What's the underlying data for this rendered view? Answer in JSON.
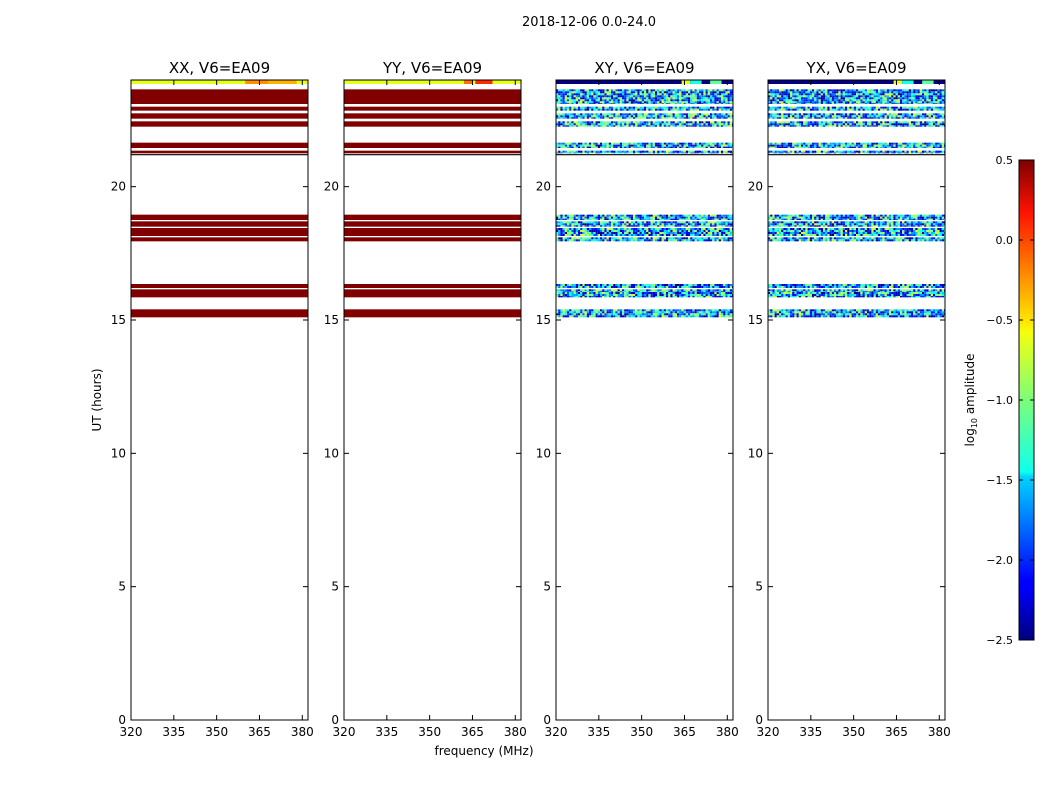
{
  "suptitle": "2018-12-06 0.0-24.0",
  "chart_data": {
    "type": "heatmap",
    "xlabel": "frequency (MHz)",
    "ylabel": "UT (hours)",
    "xlim": [
      320,
      382
    ],
    "ylim": [
      0,
      24
    ],
    "xticks": [
      320,
      335,
      350,
      365,
      380
    ],
    "yticks": [
      0,
      5,
      10,
      15,
      20
    ],
    "colorbar": {
      "label_main": "log",
      "label_sub": "10",
      "label_tail": " amplitude",
      "vmin": -2.5,
      "vmax": 0.5,
      "ticks": [
        0.5,
        0.0,
        -0.5,
        -1.0,
        -1.5,
        -2.0,
        -2.5
      ],
      "tick_labels": [
        "0.5",
        "0.0",
        "−0.5",
        "−1.0",
        "−1.5",
        "−2.0",
        "−2.5"
      ]
    },
    "data_bands": [
      [
        15.1,
        15.4
      ],
      [
        15.85,
        16.05
      ],
      [
        16.05,
        16.15
      ],
      [
        16.2,
        16.35
      ],
      [
        17.95,
        18.1
      ],
      [
        18.15,
        18.45
      ],
      [
        18.5,
        18.7
      ],
      [
        18.75,
        18.95
      ],
      [
        21.25,
        21.35
      ],
      [
        21.45,
        21.65
      ],
      [
        22.25,
        22.45
      ],
      [
        22.55,
        22.75
      ],
      [
        22.85,
        23.0
      ],
      [
        23.1,
        23.65
      ],
      [
        23.85,
        24.0
      ]
    ],
    "panels": [
      {
        "title": "XX, V6=EA09",
        "level": 0.5,
        "noise": 0.0,
        "top_level": -0.7,
        "top_blocks": [
          [
            360,
            368,
            -0.3
          ],
          [
            368,
            378,
            -0.4
          ]
        ]
      },
      {
        "title": "YY, V6=EA09",
        "level": 0.5,
        "noise": 0.0,
        "top_level": -0.7,
        "top_blocks": [
          [
            362,
            365,
            -0.2
          ],
          [
            366,
            372,
            0.0
          ]
        ]
      },
      {
        "title": "XY, V6=EA09",
        "level": -1.6,
        "noise": 0.9,
        "top_level": -2.5,
        "top_blocks": [
          [
            364,
            367,
            -0.7
          ],
          [
            367,
            371,
            -1.3
          ],
          [
            374,
            378,
            -1.1
          ]
        ]
      },
      {
        "title": "YX, V6=EA09",
        "level": -1.6,
        "noise": 0.9,
        "top_level": -2.5,
        "top_blocks": [
          [
            364,
            367,
            -0.7
          ],
          [
            367,
            371,
            -1.3
          ],
          [
            374,
            378,
            -1.1
          ]
        ]
      }
    ]
  }
}
